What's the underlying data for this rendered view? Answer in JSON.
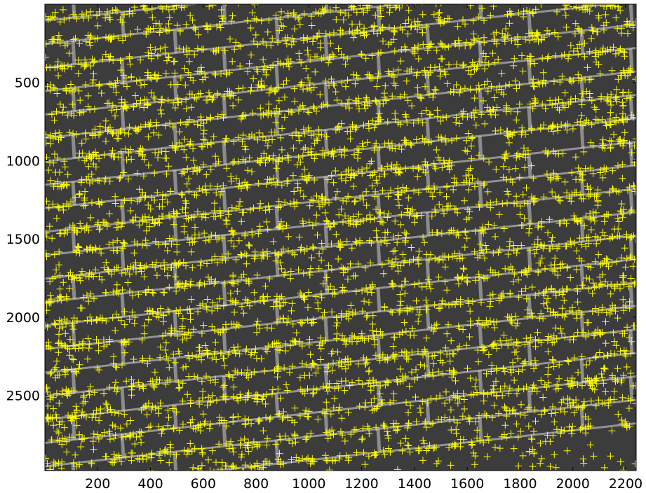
{
  "figure": {
    "image_description": "",
    "colors": {
      "background": "#ffffff",
      "image_dark": "#3c3c3c",
      "mortar": "#d9d9d9",
      "marker": "#ffff00",
      "axis": "#000000"
    },
    "marker_icon": "plus-marker",
    "x_axis": {
      "ticks": [
        "200",
        "400",
        "600",
        "800",
        "1000",
        "1200",
        "1400",
        "1600",
        "1800",
        "2000",
        "2200"
      ],
      "tick_values": [
        200,
        400,
        600,
        800,
        1000,
        1200,
        1400,
        1600,
        1800,
        2000,
        2200
      ],
      "range": [
        0,
        2240
      ]
    },
    "y_axis": {
      "ticks": [
        "500",
        "1000",
        "1500",
        "2000",
        "2500"
      ],
      "tick_values": [
        500,
        1000,
        1500,
        2000,
        2500
      ],
      "range": [
        0,
        2980
      ],
      "direction": "down"
    }
  }
}
